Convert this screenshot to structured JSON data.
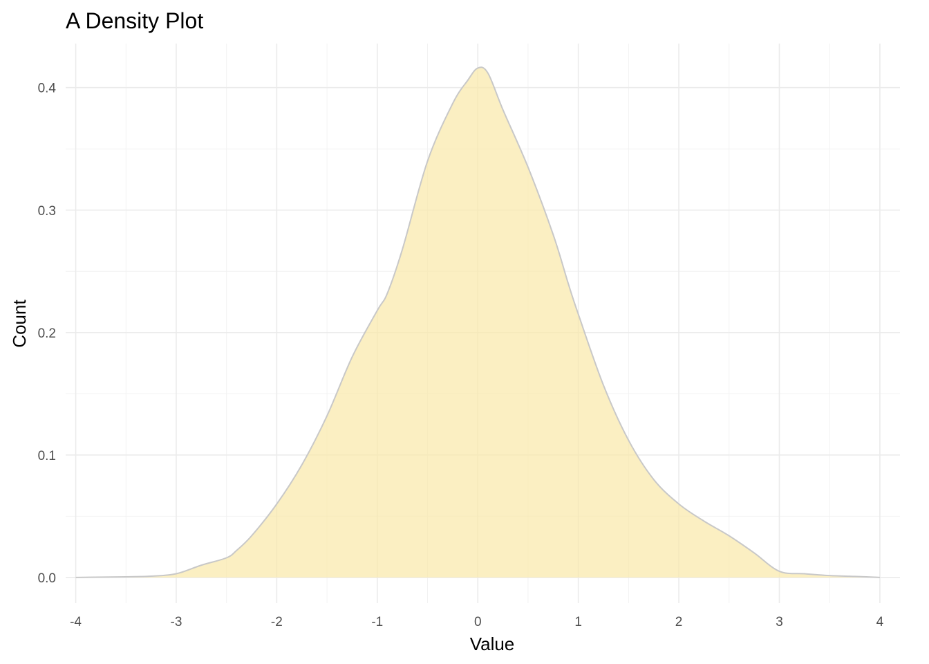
{
  "chart_data": {
    "type": "area",
    "title": "A Density Plot",
    "xlabel": "Value",
    "ylabel": "Count",
    "xlim": [
      -4.1,
      4.2
    ],
    "ylim": [
      -0.021,
      0.436
    ],
    "x_ticks": [
      -4,
      -3,
      -2,
      -1,
      0,
      1,
      2,
      3,
      4
    ],
    "x_tick_labels": [
      "-4",
      "-3",
      "-2",
      "-1",
      "0",
      "1",
      "2",
      "3",
      "4"
    ],
    "y_ticks": [
      0.0,
      0.1,
      0.2,
      0.3,
      0.4
    ],
    "y_tick_labels": [
      "0.0",
      "0.1",
      "0.2",
      "0.3",
      "0.4"
    ],
    "grid": true,
    "legend": "none",
    "fill_color": "#f9e8a8",
    "fill_opacity": 0.7,
    "line_color": "#c8c8c8",
    "series": [
      {
        "x": [
          -4.0,
          -3.5,
          -3.25,
          -3.0,
          -2.75,
          -2.5,
          -2.4,
          -2.25,
          -2.0,
          -1.75,
          -1.5,
          -1.25,
          -1.0,
          -0.9,
          -0.75,
          -0.5,
          -0.25,
          -0.1,
          0.0,
          0.1,
          0.25,
          0.5,
          0.75,
          0.9,
          1.0,
          1.25,
          1.5,
          1.75,
          2.0,
          2.25,
          2.5,
          2.75,
          3.0,
          3.25,
          3.5,
          3.75,
          4.0
        ],
        "y": [
          0.0,
          0.0005,
          0.001,
          0.003,
          0.01,
          0.016,
          0.022,
          0.034,
          0.06,
          0.092,
          0.132,
          0.18,
          0.218,
          0.232,
          0.268,
          0.34,
          0.387,
          0.406,
          0.416,
          0.412,
          0.382,
          0.335,
          0.28,
          0.24,
          0.215,
          0.157,
          0.112,
          0.08,
          0.06,
          0.046,
          0.034,
          0.02,
          0.005,
          0.003,
          0.0015,
          0.0008,
          0.0
        ]
      }
    ]
  }
}
